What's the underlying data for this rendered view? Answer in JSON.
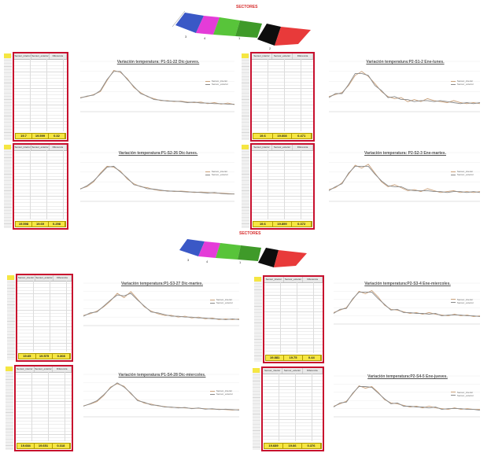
{
  "colors": {
    "sector_blue": "#3a58c6",
    "sector_magenta": "#e43cd8",
    "sector_green": "#58c43a",
    "sector_green_dark": "#3f9a29",
    "sector_black": "#0d0d0d",
    "sector_red": "#e83a3a",
    "highlight_border": "#c8102e",
    "summary_yellow": "#f5e642",
    "line_1": "#c9a07a",
    "line_2": "#8a8a8a"
  },
  "sectors": [
    {
      "title": "SECTORES",
      "labels": [
        "3",
        "4",
        "1",
        "2"
      ]
    },
    {
      "title": "SECTORES",
      "labels": [
        "3",
        "4",
        "1"
      ]
    }
  ],
  "panels": [
    {
      "sheet_headers": [
        "Sensor_interior",
        "Sensor_exterior",
        "Diferencia"
      ],
      "summary": [
        "19.7",
        "19.599",
        "0.32"
      ],
      "chart_title": "Variación temperatura: P1-S1-22 Dic-jueves.",
      "legend": [
        "Sensor_interior",
        "Sensor_exterior"
      ]
    },
    {
      "sheet_headers": [
        "Sensor_interior",
        "Sensor_exterior",
        "Diferencia"
      ],
      "summary": [
        "19.6",
        "19.608",
        "0.471"
      ],
      "chart_title": "Variación temperatura:P2-S1-2 Ene-lunes.",
      "legend": [
        "Sensor_interior",
        "Sensor_exterior"
      ]
    },
    {
      "sheet_headers": [
        "Sensor_interior",
        "Sensor_exterior",
        "Diferencia"
      ],
      "summary": [
        "19.598",
        "19.69",
        "0.298"
      ],
      "chart_title": "Variación temperatura:P1-S2-26 Dic-lunes.",
      "legend": [
        "Sensor_interior",
        "Sensor_exterior"
      ]
    },
    {
      "sheet_headers": [
        "Sensor_interior",
        "Sensor_exterior",
        "Diferencia"
      ],
      "summary": [
        "19.6",
        "19.899",
        "0.372"
      ],
      "chart_title": "Variación temperatura: P2-S2-3 Ene-martes.",
      "legend": [
        "Sensor_interior",
        "Sensor_exterior"
      ]
    },
    {
      "sheet_headers": [
        "Sensor_interior",
        "Sensor_exterior",
        "Diferencia"
      ],
      "summary": [
        "19.65",
        "19.575",
        "0.308"
      ],
      "chart_title": "Variación temperatura:P1-S3-27 Dic-martes.",
      "legend": [
        "Sensor_interior",
        "Sensor_exterior"
      ]
    },
    {
      "sheet_headers": [
        "Sensor_interior",
        "Sensor_exterior",
        "Diferencia"
      ],
      "summary": [
        "19.881",
        "19.75",
        "0.44"
      ],
      "chart_title": "Variación temperatura:P2-S3-4 Ene-miercoles.",
      "legend": [
        "Sensor_interior",
        "Sensor_exterior"
      ]
    },
    {
      "sheet_headers": [
        "Sensor_interior",
        "Sensor_exterior",
        "Diferencia"
      ],
      "summary": [
        "19.684",
        "19.651",
        "0.318"
      ],
      "chart_title": "Variación temperatura:P1-S4-28 Dic-miercoles.",
      "legend": [
        "Sensor_interior",
        "Sensor_exterior"
      ]
    },
    {
      "sheet_headers": [
        "Sensor_interior",
        "Sensor_exterior",
        "Diferencia"
      ],
      "summary": [
        "19.689",
        "19.66",
        "0.376"
      ],
      "chart_title": "Variación temperatura:P2-S4-5 Ene-jueves.",
      "legend": [
        "Sensor_interior",
        "Sensor_exterior"
      ]
    }
  ],
  "chart_data": [
    {
      "type": "line",
      "title": "Variación temperatura: P1-S1-22 Dic-jueves.",
      "x": [
        1,
        2,
        3,
        4,
        5,
        6,
        7,
        8,
        9,
        10,
        11,
        12,
        13,
        14,
        15,
        16,
        17,
        18,
        19,
        20,
        21,
        22,
        23,
        24
      ],
      "ylim": [
        0,
        100
      ],
      "series": [
        {
          "name": "Sensor_interior",
          "values": [
            28,
            30,
            34,
            40,
            62,
            82,
            78,
            66,
            48,
            38,
            30,
            26,
            22,
            22,
            20,
            21,
            19,
            18,
            19,
            16,
            18,
            15,
            17,
            14
          ]
        },
        {
          "name": "Sensor_exterior",
          "values": [
            27,
            31,
            33,
            42,
            64,
            80,
            80,
            64,
            50,
            36,
            31,
            24,
            23,
            21,
            21,
            20,
            18,
            19,
            17,
            17,
            16,
            16,
            15,
            15
          ]
        }
      ]
    },
    {
      "type": "line",
      "title": "Variación temperatura:P2-S1-2 Ene-lunes.",
      "x": [
        1,
        2,
        3,
        4,
        5,
        6,
        7,
        8,
        9,
        10,
        11,
        12,
        13,
        14,
        15,
        16,
        17,
        18,
        19,
        20,
        21,
        22,
        23,
        24
      ],
      "ylim": [
        0,
        100
      ],
      "series": [
        {
          "name": "Sensor_interior",
          "values": [
            30,
            34,
            38,
            52,
            72,
            80,
            70,
            56,
            40,
            30,
            26,
            28,
            20,
            24,
            20,
            26,
            22,
            20,
            18,
            22,
            18,
            16,
            18,
            16
          ]
        },
        {
          "name": "Sensor_exterior",
          "values": [
            28,
            36,
            36,
            54,
            76,
            76,
            72,
            52,
            42,
            28,
            30,
            24,
            24,
            20,
            22,
            22,
            20,
            22,
            20,
            18,
            16,
            18,
            16,
            18
          ]
        }
      ]
    },
    {
      "type": "line",
      "title": "Variación temperatura:P1-S2-26 Dic-lunes.",
      "x": [
        1,
        2,
        3,
        4,
        5,
        6,
        7,
        8,
        9,
        10,
        11,
        12,
        13,
        14,
        15,
        16,
        17,
        18,
        19,
        20,
        21,
        22,
        23,
        24
      ],
      "ylim": [
        0,
        100
      ],
      "series": [
        {
          "name": "Sensor_interior",
          "values": [
            26,
            30,
            40,
            58,
            72,
            70,
            62,
            46,
            36,
            30,
            28,
            24,
            22,
            22,
            20,
            21,
            20,
            18,
            19,
            18,
            17,
            17,
            16,
            15
          ]
        },
        {
          "name": "Sensor_exterior",
          "values": [
            25,
            32,
            42,
            56,
            70,
            72,
            60,
            48,
            34,
            31,
            26,
            25,
            23,
            21,
            21,
            20,
            19,
            19,
            18,
            17,
            18,
            16,
            15,
            15
          ]
        }
      ]
    },
    {
      "type": "line",
      "title": "Variación temperatura: P2-S2-3 Ene-martes.",
      "x": [
        1,
        2,
        3,
        4,
        5,
        6,
        7,
        8,
        9,
        10,
        11,
        12,
        13,
        14,
        15,
        16,
        17,
        18,
        19,
        20,
        21,
        22,
        23,
        24
      ],
      "ylim": [
        0,
        100
      ],
      "series": [
        {
          "name": "Sensor_interior",
          "values": [
            24,
            28,
            38,
            56,
            74,
            68,
            76,
            58,
            40,
            30,
            34,
            28,
            22,
            24,
            20,
            26,
            22,
            18,
            20,
            22,
            18,
            20,
            18,
            20
          ]
        },
        {
          "name": "Sensor_exterior",
          "values": [
            22,
            30,
            36,
            58,
            72,
            72,
            72,
            56,
            42,
            32,
            30,
            30,
            24,
            22,
            22,
            22,
            20,
            20,
            18,
            20,
            20,
            18,
            20,
            18
          ]
        }
      ]
    },
    {
      "type": "line",
      "title": "Variación temperatura:P1-S3-27 Dic-martes.",
      "x": [
        1,
        2,
        3,
        4,
        5,
        6,
        7,
        8,
        9,
        10,
        11,
        12,
        13,
        14,
        15,
        16,
        17,
        18,
        19,
        20,
        21,
        22,
        23,
        24
      ],
      "ylim": [
        0,
        100
      ],
      "series": [
        {
          "name": "Sensor_interior",
          "values": [
            24,
            28,
            34,
            44,
            58,
            76,
            66,
            80,
            62,
            44,
            34,
            28,
            24,
            24,
            20,
            22,
            18,
            20,
            16,
            18,
            14,
            16,
            14,
            16
          ]
        },
        {
          "name": "Sensor_exterior",
          "values": [
            22,
            30,
            32,
            46,
            60,
            72,
            70,
            76,
            60,
            46,
            32,
            30,
            26,
            22,
            22,
            20,
            20,
            18,
            18,
            16,
            16,
            14,
            16,
            14
          ]
        }
      ]
    },
    {
      "type": "line",
      "title": "Variación temperatura:P2-S3-4 Ene-miercoles.",
      "x": [
        1,
        2,
        3,
        4,
        5,
        6,
        7,
        8,
        9,
        10,
        11,
        12,
        13,
        14,
        15,
        16,
        17,
        18,
        19,
        20,
        21,
        22,
        23,
        24
      ],
      "ylim": [
        0,
        100
      ],
      "series": [
        {
          "name": "Sensor_interior",
          "values": [
            28,
            34,
            40,
            60,
            80,
            74,
            82,
            66,
            46,
            36,
            34,
            30,
            26,
            28,
            24,
            28,
            24,
            22,
            20,
            24,
            20,
            22,
            18,
            20
          ]
        },
        {
          "name": "Sensor_exterior",
          "values": [
            26,
            36,
            38,
            62,
            78,
            78,
            78,
            62,
            48,
            34,
            36,
            28,
            28,
            26,
            26,
            24,
            26,
            20,
            22,
            22,
            22,
            20,
            20,
            18
          ]
        }
      ]
    },
    {
      "type": "line",
      "title": "Variación temperatura:P1-S4-28 Dic-miercoles.",
      "x": [
        1,
        2,
        3,
        4,
        5,
        6,
        7,
        8,
        9,
        10,
        11,
        12,
        13,
        14,
        15,
        16,
        17,
        18,
        19,
        20,
        21,
        22,
        23,
        24
      ],
      "ylim": [
        0,
        100
      ],
      "series": [
        {
          "name": "Sensor_interior",
          "values": [
            26,
            30,
            36,
            50,
            70,
            78,
            72,
            54,
            40,
            32,
            30,
            26,
            24,
            22,
            22,
            21,
            20,
            20,
            19,
            18,
            18,
            17,
            16,
            17
          ]
        },
        {
          "name": "Sensor_exterior",
          "values": [
            25,
            31,
            38,
            52,
            68,
            80,
            70,
            56,
            38,
            34,
            28,
            27,
            23,
            23,
            21,
            22,
            19,
            21,
            18,
            19,
            17,
            18,
            17,
            16
          ]
        }
      ]
    },
    {
      "type": "line",
      "title": "Variación temperatura:P2-S4-5 Ene-jueves.",
      "x": [
        1,
        2,
        3,
        4,
        5,
        6,
        7,
        8,
        9,
        10,
        11,
        12,
        13,
        14,
        15,
        16,
        17,
        18,
        19,
        20,
        21,
        22,
        23,
        24
      ],
      "ylim": [
        0,
        100
      ],
      "series": [
        {
          "name": "Sensor_interior",
          "values": [
            26,
            32,
            38,
            56,
            76,
            70,
            74,
            60,
            42,
            34,
            32,
            28,
            24,
            26,
            22,
            26,
            22,
            20,
            18,
            22,
            18,
            20,
            18,
            18
          ]
        },
        {
          "name": "Sensor_exterior",
          "values": [
            24,
            34,
            36,
            58,
            74,
            74,
            72,
            58,
            44,
            32,
            34,
            26,
            26,
            24,
            24,
            22,
            24,
            18,
            20,
            20,
            20,
            18,
            18,
            16
          ]
        }
      ]
    }
  ]
}
